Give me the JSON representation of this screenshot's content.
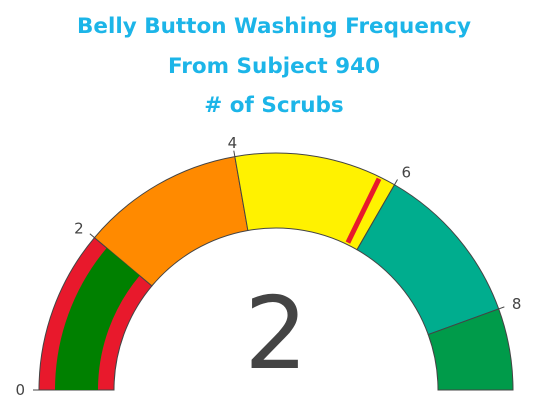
{
  "chart_data": {
    "type": "gauge",
    "title": [
      "Belly Button Washing Frequency",
      "From Subject 940",
      "# of Scrubs"
    ],
    "value": 2,
    "range": [
      0,
      9
    ],
    "tick_values": [
      0,
      2,
      4,
      6,
      8
    ],
    "tick_labels": [
      "0",
      "2",
      "4",
      "6",
      "8"
    ],
    "bands": [
      {
        "from": 0,
        "to": 2,
        "color": "#e8192c"
      },
      {
        "from": 2,
        "to": 4,
        "color": "#ff8a00"
      },
      {
        "from": 4,
        "to": 6,
        "color": "#fff200"
      },
      {
        "from": 6,
        "to": 8,
        "color": "#00ad8e"
      },
      {
        "from": 8,
        "to": 9,
        "color": "#009b4a"
      }
    ],
    "bar": {
      "value": 2,
      "color": "#008000"
    },
    "threshold": {
      "value": 5.8,
      "color": "#e8192c"
    }
  }
}
